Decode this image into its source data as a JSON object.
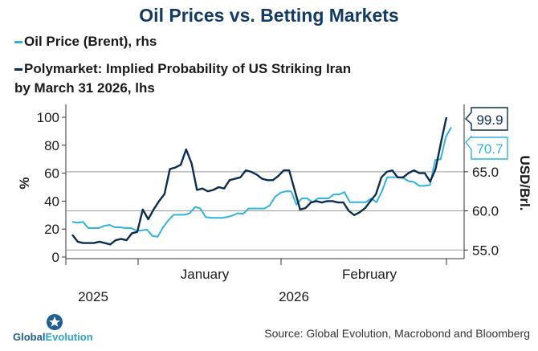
{
  "chart_data": {
    "type": "line",
    "title": "Oil Prices vs. Betting Markets",
    "series": [
      {
        "name": "Oil Price (Brent), rhs",
        "axis": "right",
        "color": "#2eb4de",
        "values": [
          58.6,
          58.5,
          58.6,
          57.8,
          57.8,
          57.8,
          58.1,
          58.2,
          57.9,
          57.9,
          57.8,
          57.8,
          57.5,
          57.5,
          57.6,
          56.8,
          56.7,
          57.9,
          58.8,
          59.5,
          59.5,
          59.5,
          59.7,
          60.5,
          60.3,
          59.2,
          59.1,
          59.1,
          59.1,
          59.2,
          59.4,
          59.7,
          59.6,
          60.3,
          60.3,
          60.3,
          60.3,
          60.7,
          61.8,
          62.3,
          62.5,
          62.5,
          60.8,
          61.6,
          61.6,
          61.1,
          61.6,
          61.6,
          61.6,
          62.1,
          62.1,
          62.4,
          61.1,
          61.1,
          61.1,
          61.1,
          61.6,
          61.1,
          62.5,
          64.3,
          64.3,
          64.3,
          64.2,
          63.8,
          63.7,
          63.2,
          63.2,
          63.3,
          66.5,
          66.6,
          69.5,
          70.7
        ]
      },
      {
        "name": "Polymarket: Implied Probability of US Striking Iran by March 31 2026, lhs",
        "axis": "left",
        "color": "#0d2d50",
        "values": [
          16,
          11,
          10,
          10,
          10,
          11,
          10,
          9,
          12,
          13,
          12,
          17,
          18,
          34,
          27,
          34,
          40,
          45,
          63,
          64,
          66,
          77,
          67,
          48,
          49,
          47,
          48,
          50,
          49,
          55,
          56,
          57,
          62,
          61,
          59,
          56,
          55,
          55,
          58,
          62,
          62,
          48,
          34,
          35,
          39,
          40,
          39,
          40,
          40,
          39,
          39,
          33,
          30,
          32,
          35,
          40,
          45,
          57,
          61,
          62,
          57,
          57,
          60,
          62,
          60,
          60,
          54,
          63,
          82,
          100
        ]
      }
    ],
    "annotations": [
      "99.9",
      "70.7"
    ],
    "left_axis": {
      "label": "%",
      "ticks": [
        "0",
        "20",
        "40",
        "60",
        "80",
        "100"
      ],
      "min": 0,
      "max": 100
    },
    "right_axis": {
      "label": "USD/Brl.",
      "ticks": [
        "55.0",
        "60.0",
        "65.0"
      ],
      "min": 53.9,
      "max": 73.6
    },
    "x_labels": {
      "months": [
        "January",
        "February"
      ],
      "years": [
        "2025",
        "2026"
      ]
    }
  },
  "legend": {
    "oil_label": "Oil Price (Brent), rhs",
    "poly_label_line1": "Polymarket: Implied Probability of US Striking Iran",
    "poly_label_line2": "by March 31 2026, lhs"
  },
  "logo": {
    "part1": "Global",
    "part2": "Evolution"
  },
  "source": "Source: Global Evolution, Macrobond and Bloomberg"
}
